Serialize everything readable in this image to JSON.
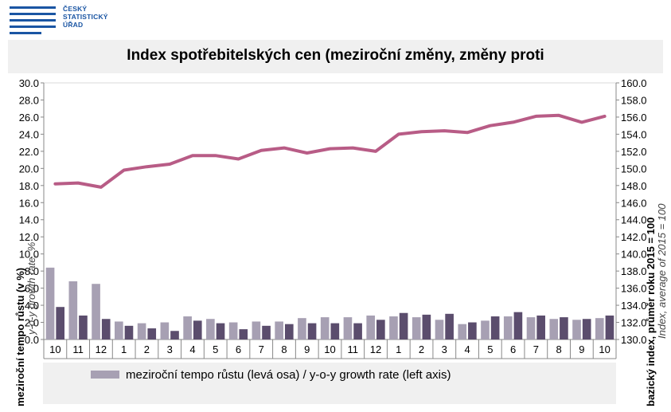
{
  "header": {
    "logo_lines": [
      "ČESKÝ",
      "STATISTICKÝ",
      "ÚŘAD"
    ]
  },
  "colors": {
    "logo_blue": "#1a55a3",
    "line": "#b85c86",
    "bar_prev": "#a7a0b3",
    "bar_curr": "#5b4d6d",
    "panel_bg": "#f0f0f0"
  },
  "chart_data": {
    "type": "bar",
    "title": "Index spotřebitelských cen (meziroční změny, změny proti",
    "categories": [
      "10",
      "11",
      "12",
      "1",
      "2",
      "3",
      "4",
      "5",
      "6",
      "7",
      "8",
      "9",
      "10",
      "11",
      "12",
      "1",
      "2",
      "3",
      "4",
      "5",
      "6",
      "7",
      "8",
      "9",
      "10"
    ],
    "series": [
      {
        "name": "meziroční tempo růstu (levá osa) / y-o-y growth rate (left axis)",
        "axis": "left",
        "kind": "bar",
        "values": [
          8.4,
          6.8,
          6.5,
          2.1,
          1.9,
          2.0,
          2.7,
          2.4,
          2.0,
          2.1,
          2.1,
          2.5,
          2.6,
          2.6,
          2.8,
          2.7,
          2.6,
          2.3,
          1.8,
          2.2,
          2.7,
          2.6,
          2.4,
          2.3,
          2.5
        ]
      },
      {
        "name": "",
        "axis": "left",
        "kind": "bar",
        "values": [
          3.8,
          2.8,
          2.4,
          1.6,
          1.3,
          1.0,
          2.2,
          1.9,
          1.2,
          1.6,
          1.8,
          1.9,
          1.9,
          1.9,
          2.3,
          3.1,
          2.9,
          3.0,
          2.0,
          2.7,
          3.2,
          2.8,
          2.6,
          2.4,
          2.8
        ]
      },
      {
        "name": "",
        "axis": "right",
        "kind": "line",
        "values": [
          148.2,
          148.3,
          147.8,
          149.8,
          150.2,
          150.5,
          151.5,
          151.5,
          151.1,
          152.1,
          152.4,
          151.8,
          152.3,
          152.4,
          152.0,
          154.0,
          154.3,
          154.4,
          154.2,
          155.0,
          155.4,
          156.1,
          156.2,
          155.4,
          156.1
        ]
      }
    ],
    "left_axis": {
      "label": "meziroční tempo růstu (v %)",
      "label2": "y-o-y growth rate, %",
      "ylim": [
        0,
        30
      ],
      "ticks": [
        "0.0",
        "2.0",
        "4.0",
        "6.0",
        "8.0",
        "10.0",
        "12.0",
        "14.0",
        "16.0",
        "18.0",
        "20.0",
        "22.0",
        "24.0",
        "26.0",
        "28.0",
        "30.0"
      ]
    },
    "right_axis": {
      "label": "bazický index, průměr roku 2015 = 100",
      "label2": "Index, average of 2015 = 100",
      "ylim": [
        130,
        160
      ],
      "ticks": [
        "130.0",
        "132.0",
        "134.0",
        "136.0",
        "138.0",
        "140.0",
        "142.0",
        "144.0",
        "146.0",
        "148.0",
        "150.0",
        "152.0",
        "154.0",
        "156.0",
        "158.0",
        "160.0"
      ]
    },
    "grid": false,
    "legend": "bottom"
  }
}
